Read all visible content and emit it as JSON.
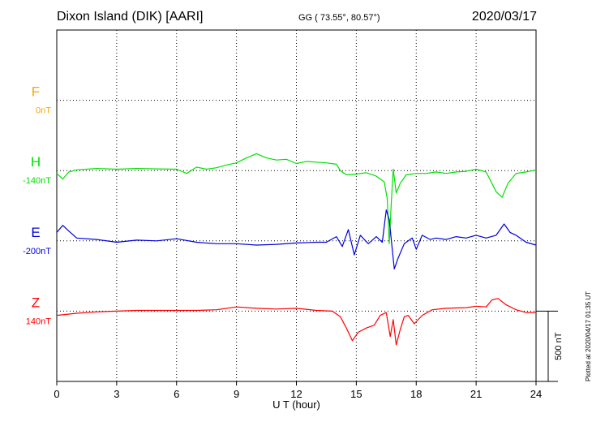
{
  "header": {
    "title": "Dixon Island (DIK)  [AARI]",
    "coords": "GG ( 73.55°,  80.57°)",
    "date": "2020/03/17"
  },
  "footer": {
    "plotted": "Plotted at 2020/04/17 01:35 UT"
  },
  "scale_bar": {
    "label": "500 nT",
    "value_nT": 500
  },
  "chart_data": {
    "type": "line",
    "title": "Dixon Island (DIK)  [AARI]",
    "xlabel": "U T (hour)",
    "ylabel": "",
    "xlim": [
      0,
      24
    ],
    "xticks": [
      0,
      3,
      6,
      9,
      12,
      15,
      18,
      21,
      24
    ],
    "grid": true,
    "nT_per_division": 500,
    "channels": [
      {
        "name": "F",
        "baseline_label": "0nT",
        "color": "#ffa500",
        "baseline_division": 1,
        "values": []
      },
      {
        "name": "H",
        "baseline_label": "-140nT",
        "color": "#00e000",
        "baseline_division": 2,
        "series": [
          [
            0,
            -20
          ],
          [
            0.3,
            -60
          ],
          [
            0.6,
            -10
          ],
          [
            1,
            5
          ],
          [
            2,
            15
          ],
          [
            3,
            10
          ],
          [
            4,
            15
          ],
          [
            5,
            12
          ],
          [
            6,
            10
          ],
          [
            6.5,
            -20
          ],
          [
            7,
            25
          ],
          [
            7.5,
            10
          ],
          [
            8,
            20
          ],
          [
            8.5,
            40
          ],
          [
            9,
            55
          ],
          [
            9.5,
            90
          ],
          [
            10,
            120
          ],
          [
            10.5,
            90
          ],
          [
            11,
            75
          ],
          [
            11.5,
            80
          ],
          [
            12,
            50
          ],
          [
            12.5,
            65
          ],
          [
            13,
            60
          ],
          [
            13.5,
            55
          ],
          [
            14,
            45
          ],
          [
            14.2,
            0
          ],
          [
            14.5,
            -30
          ],
          [
            15,
            -25
          ],
          [
            15.5,
            -15
          ],
          [
            16,
            -40
          ],
          [
            16.4,
            -80
          ],
          [
            16.55,
            -200
          ],
          [
            16.65,
            -520
          ],
          [
            16.75,
            -230
          ],
          [
            16.85,
            10
          ],
          [
            17,
            -160
          ],
          [
            17.2,
            -90
          ],
          [
            17.5,
            -30
          ],
          [
            18,
            -20
          ],
          [
            18.5,
            -20
          ],
          [
            19,
            -10
          ],
          [
            19.5,
            -20
          ],
          [
            20,
            -10
          ],
          [
            20.5,
            -5
          ],
          [
            21,
            10
          ],
          [
            21.5,
            -10
          ],
          [
            22,
            -150
          ],
          [
            22.3,
            -190
          ],
          [
            22.6,
            -90
          ],
          [
            23,
            -20
          ],
          [
            23.5,
            -10
          ],
          [
            24,
            5
          ]
        ]
      },
      {
        "name": "E",
        "baseline_label": "-200nT",
        "color": "#0000e0",
        "baseline_division": 3,
        "series": [
          [
            0,
            60
          ],
          [
            0.3,
            110
          ],
          [
            0.6,
            70
          ],
          [
            1,
            20
          ],
          [
            2,
            10
          ],
          [
            3,
            -10
          ],
          [
            4,
            5
          ],
          [
            5,
            0
          ],
          [
            6,
            15
          ],
          [
            7,
            -10
          ],
          [
            8,
            -20
          ],
          [
            9,
            -20
          ],
          [
            10,
            -30
          ],
          [
            11,
            -25
          ],
          [
            12,
            -15
          ],
          [
            13,
            -10
          ],
          [
            13.5,
            -10
          ],
          [
            14,
            30
          ],
          [
            14.3,
            -40
          ],
          [
            14.6,
            80
          ],
          [
            14.9,
            -100
          ],
          [
            15.2,
            40
          ],
          [
            15.6,
            -20
          ],
          [
            16,
            30
          ],
          [
            16.3,
            -10
          ],
          [
            16.5,
            220
          ],
          [
            16.65,
            150
          ],
          [
            16.8,
            -60
          ],
          [
            16.9,
            -200
          ],
          [
            17.1,
            -120
          ],
          [
            17.4,
            -20
          ],
          [
            17.8,
            20
          ],
          [
            18,
            -60
          ],
          [
            18.3,
            40
          ],
          [
            18.7,
            10
          ],
          [
            19,
            20
          ],
          [
            19.5,
            10
          ],
          [
            20,
            30
          ],
          [
            20.5,
            20
          ],
          [
            21,
            40
          ],
          [
            21.5,
            20
          ],
          [
            22,
            40
          ],
          [
            22.4,
            120
          ],
          [
            22.7,
            60
          ],
          [
            23,
            40
          ],
          [
            23.5,
            -10
          ],
          [
            24,
            -30
          ]
        ]
      },
      {
        "name": "Z",
        "baseline_label": "140nT",
        "color": "#ff0000",
        "baseline_division": 4,
        "series": [
          [
            0,
            -30
          ],
          [
            1,
            -15
          ],
          [
            2,
            -5
          ],
          [
            3,
            0
          ],
          [
            4,
            5
          ],
          [
            5,
            5
          ],
          [
            6,
            5
          ],
          [
            7,
            5
          ],
          [
            8,
            10
          ],
          [
            9,
            30
          ],
          [
            10,
            20
          ],
          [
            11,
            15
          ],
          [
            12,
            20
          ],
          [
            13,
            5
          ],
          [
            13.8,
            0
          ],
          [
            14.2,
            -40
          ],
          [
            14.5,
            -120
          ],
          [
            14.8,
            -210
          ],
          [
            15.1,
            -150
          ],
          [
            15.5,
            -120
          ],
          [
            15.9,
            -100
          ],
          [
            16.2,
            -30
          ],
          [
            16.5,
            -10
          ],
          [
            16.7,
            -180
          ],
          [
            16.85,
            -60
          ],
          [
            17,
            -240
          ],
          [
            17.2,
            -130
          ],
          [
            17.4,
            -40
          ],
          [
            17.6,
            -30
          ],
          [
            17.9,
            -90
          ],
          [
            18.3,
            -30
          ],
          [
            18.8,
            10
          ],
          [
            19.5,
            20
          ],
          [
            20.5,
            25
          ],
          [
            21,
            35
          ],
          [
            21.5,
            30
          ],
          [
            21.8,
            80
          ],
          [
            22.1,
            90
          ],
          [
            22.5,
            45
          ],
          [
            23,
            10
          ],
          [
            23.5,
            -10
          ],
          [
            24,
            -10
          ]
        ]
      }
    ]
  }
}
